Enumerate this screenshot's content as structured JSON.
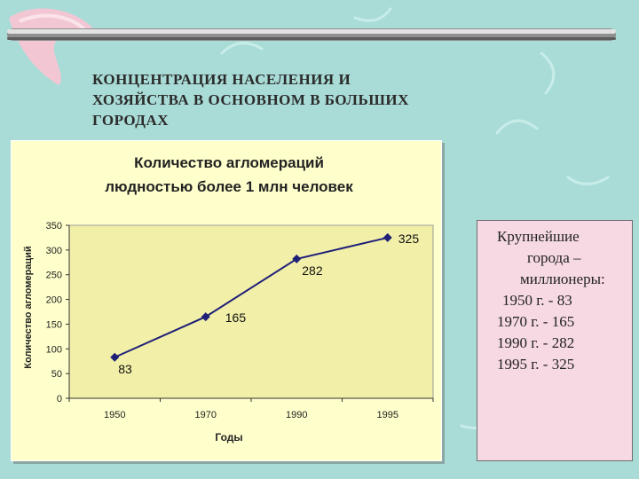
{
  "slide": {
    "title_lines": [
      "КОНЦЕНТРАЦИЯ  НАСЕЛЕНИЯ  И",
      "ХОЗЯЙСТВА  В ОСНОВНОМ  В  БОЛЬШИХ",
      "ГОРОДАХ"
    ]
  },
  "side_box": {
    "heading_lines": [
      "Крупнейшие",
      "города –",
      "миллионеры:"
    ],
    "entries": [
      "1950 г. - 83",
      "1970 г. - 165",
      "1990 г. - 282",
      "1995 г. - 325"
    ]
  },
  "colors": {
    "background": "#a9dcd7",
    "plot_area": "#f2f0a8",
    "series": "#1f1f78",
    "swoosh": "#f2c7d3"
  },
  "chart_data": {
    "type": "line",
    "title_lines": [
      "Количество агломераций",
      "людностью более 1 млн человек"
    ],
    "xlabel": "Годы",
    "ylabel": "Количество агломераций",
    "categories": [
      "1950",
      "1970",
      "1990",
      "1995"
    ],
    "series": [
      {
        "values": [
          83,
          165,
          282,
          325
        ],
        "data_labels": [
          "83",
          "165",
          "282",
          "325"
        ]
      }
    ],
    "ylim": [
      0,
      350
    ],
    "yticks": [
      0,
      50,
      100,
      150,
      200,
      250,
      300,
      350
    ],
    "grid": false,
    "legend": "none"
  }
}
